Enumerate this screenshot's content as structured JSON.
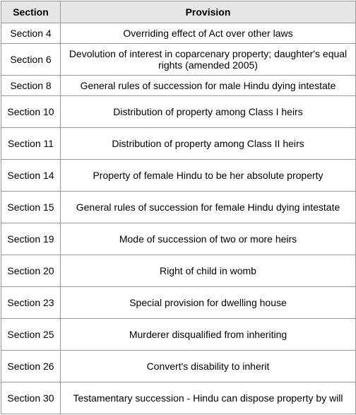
{
  "table": {
    "headers": [
      "Section",
      "Provision"
    ],
    "rows": [
      {
        "section": "Section 4",
        "provision": "Overriding effect of Act over other laws"
      },
      {
        "section": "Section 6",
        "provision": "Devolution of interest in coparcenary property; daughter's equal rights (amended 2005)"
      },
      {
        "section": "Section 8",
        "provision": "General rules of succession for male Hindu dying intestate"
      },
      {
        "section": "Section 10",
        "provision": "Distribution of property among Class I heirs"
      },
      {
        "section": "Section 11",
        "provision": "Distribution of property among Class II heirs"
      },
      {
        "section": "Section 14",
        "provision": "Property of female Hindu to be her absolute property"
      },
      {
        "section": "Section 15",
        "provision": "General rules of succession for female Hindu dying intestate"
      },
      {
        "section": "Section 19",
        "provision": "Mode of succession of two or more heirs"
      },
      {
        "section": "Section 20",
        "provision": "Right of child in womb"
      },
      {
        "section": "Section 23",
        "provision": "Special provision for dwelling house"
      },
      {
        "section": "Section 25",
        "provision": "Murderer disqualified from inheriting"
      },
      {
        "section": "Section 26",
        "provision": "Convert's disability to inherit"
      },
      {
        "section": "Section 30",
        "provision": "Testamentary succession - Hindu can dispose property by will"
      }
    ]
  }
}
